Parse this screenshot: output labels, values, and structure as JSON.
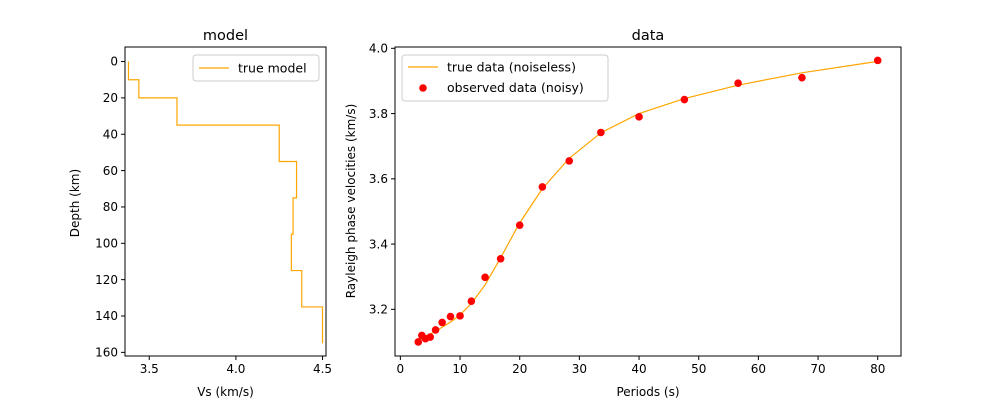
{
  "chart_data": [
    {
      "type": "line",
      "title": "model",
      "xlabel": "Vs (km/s)",
      "ylabel": "Depth (km)",
      "xlim": [
        3.36,
        4.52
      ],
      "ylim": [
        162,
        -8
      ],
      "y_inverted": true,
      "xticks": [
        3.5,
        4.0,
        4.5
      ],
      "xtick_labels": [
        "3.5",
        "4.0",
        "4.5"
      ],
      "yticks": [
        0,
        20,
        40,
        60,
        80,
        100,
        120,
        140,
        160
      ],
      "ytick_labels": [
        "0",
        "20",
        "40",
        "60",
        "80",
        "100",
        "120",
        "140",
        "160"
      ],
      "legend_position": "top-right",
      "grid": false,
      "series": [
        {
          "name": "true model",
          "style": "step",
          "color": "#FFA500",
          "points": [
            [
              3.38,
              0
            ],
            [
              3.38,
              10
            ],
            [
              3.44,
              10
            ],
            [
              3.44,
              20
            ],
            [
              3.66,
              20
            ],
            [
              3.66,
              35
            ],
            [
              4.25,
              35
            ],
            [
              4.25,
              55
            ],
            [
              4.35,
              55
            ],
            [
              4.35,
              75
            ],
            [
              4.33,
              75
            ],
            [
              4.33,
              95
            ],
            [
              4.32,
              95
            ],
            [
              4.32,
              115
            ],
            [
              4.38,
              115
            ],
            [
              4.38,
              135
            ],
            [
              4.5,
              135
            ],
            [
              4.5,
              155
            ]
          ]
        }
      ]
    },
    {
      "type": "line",
      "title": "data",
      "xlabel": "Periods (s)",
      "ylabel": "Rayleigh phase velocities (km/s)",
      "xlim": [
        -0.9,
        83.9
      ],
      "ylim": [
        3.057,
        4.004
      ],
      "xticks": [
        0,
        10,
        20,
        30,
        40,
        50,
        60,
        70,
        80
      ],
      "xtick_labels": [
        "0",
        "10",
        "20",
        "30",
        "40",
        "50",
        "60",
        "70",
        "80"
      ],
      "yticks": [
        3.2,
        3.4,
        3.6,
        3.8,
        4.0
      ],
      "ytick_labels": [
        "3.2",
        "3.4",
        "3.6",
        "3.8",
        "4.0"
      ],
      "legend_position": "top-left",
      "grid": false,
      "series": [
        {
          "name": "true data (noiseless)",
          "style": "line",
          "color": "#FFA500",
          "x": [
            3.0,
            3.6,
            4.2,
            5.0,
            5.9,
            7.0,
            8.4,
            10.0,
            11.9,
            14.2,
            16.8,
            20.0,
            23.8,
            28.3,
            33.6,
            40.0,
            47.6,
            56.6,
            67.3,
            80.0
          ],
          "y": [
            3.109,
            3.113,
            3.118,
            3.124,
            3.133,
            3.145,
            3.161,
            3.183,
            3.218,
            3.275,
            3.358,
            3.465,
            3.57,
            3.663,
            3.741,
            3.8,
            3.846,
            3.887,
            3.925,
            3.96
          ]
        },
        {
          "name": "observed data (noisy)",
          "style": "scatter",
          "color": "#FF0000",
          "x": [
            3.0,
            3.6,
            4.2,
            5.0,
            5.9,
            7.0,
            8.4,
            10.0,
            11.9,
            14.2,
            16.8,
            20.0,
            23.8,
            28.3,
            33.6,
            40.0,
            47.6,
            56.6,
            67.3,
            80.0
          ],
          "y": [
            3.1,
            3.12,
            3.11,
            3.115,
            3.137,
            3.16,
            3.178,
            3.18,
            3.225,
            3.298,
            3.355,
            3.458,
            3.575,
            3.655,
            3.742,
            3.79,
            3.843,
            3.893,
            3.91,
            3.963
          ]
        }
      ]
    }
  ]
}
